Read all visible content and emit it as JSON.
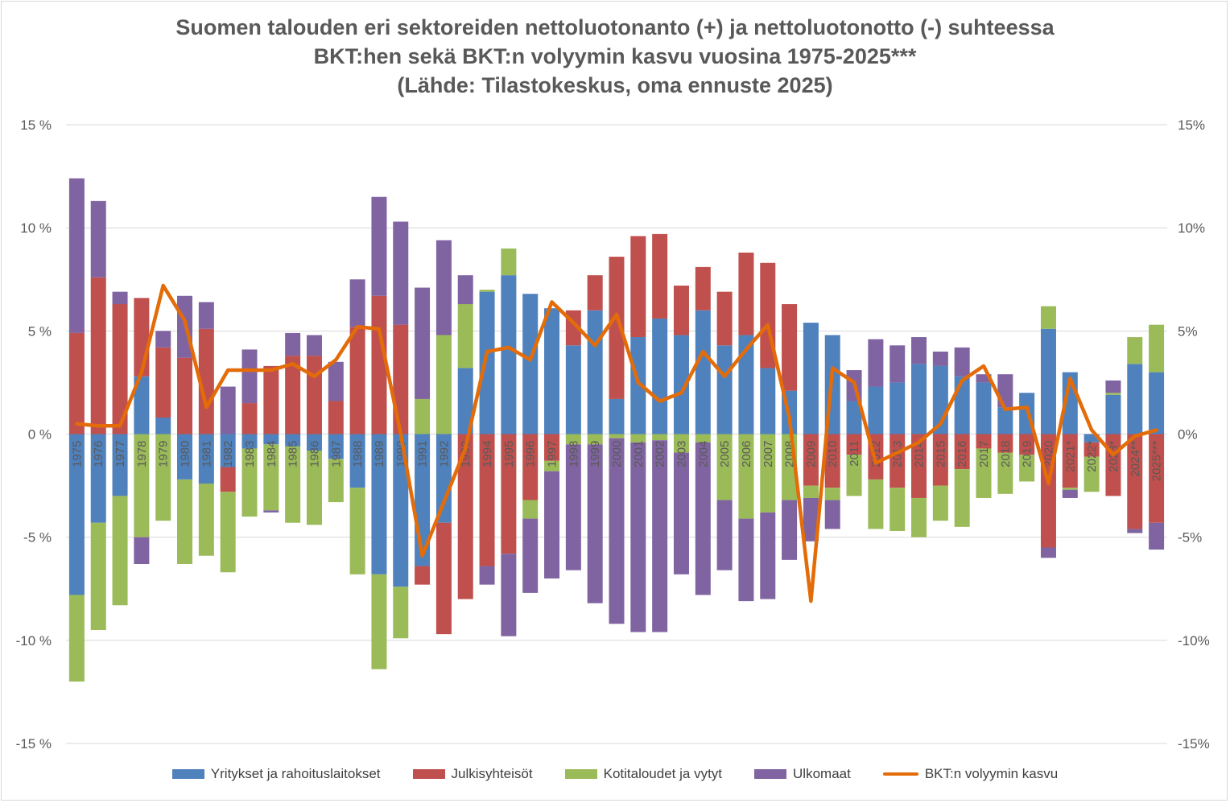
{
  "chart_data": {
    "type": "bar",
    "stacked": true,
    "title_lines": [
      "Suomen talouden eri sektoreiden nettoluotonanto (+) ja nettoluotonotto (-) suhteessa",
      "BKT:hen sekä BKT:n volyymin kasvu vuosina 1975-2025***",
      "(Lähde: Tilastokeskus, oma ennuste 2025)"
    ],
    "y_left_ticks": [
      "15 %",
      "10 %",
      "5 %",
      "0 %",
      "-5 %",
      "-10 %",
      "-15 %"
    ],
    "y_right_ticks": [
      "15%",
      "10%",
      "5%",
      "0%",
      "-5%",
      "-10%",
      "-15%"
    ],
    "ylim": [
      -15,
      15
    ],
    "categories": [
      "1975",
      "1976",
      "1977",
      "1978",
      "1979",
      "1980",
      "1981",
      "1982",
      "1983",
      "1984",
      "1985",
      "1986",
      "1987",
      "1988",
      "1989",
      "1990",
      "1991",
      "1992",
      "1993",
      "1994",
      "1995",
      "1996",
      "1997",
      "1998",
      "1999",
      "2000",
      "2001",
      "2002",
      "2003",
      "2004",
      "2005",
      "2006",
      "2007",
      "2008",
      "2009",
      "2010",
      "2011",
      "2012",
      "2013",
      "2014",
      "2015",
      "2016",
      "2017",
      "2018",
      "2019",
      "2020",
      "2021*",
      "2022*",
      "2023*",
      "2024**",
      "2025***"
    ],
    "series": [
      {
        "name": "Yritykset ja rahoituslaitokset",
        "color": "#4f81bd",
        "values": [
          -7.8,
          -4.3,
          -3.0,
          2.8,
          0.8,
          -2.2,
          -2.4,
          -1.6,
          -0.7,
          -0.5,
          -0.6,
          -0.8,
          -1.2,
          -2.6,
          -6.8,
          -7.4,
          -6.4,
          -4.3,
          3.2,
          6.9,
          7.7,
          6.8,
          6.1,
          4.3,
          6.0,
          1.7,
          4.7,
          5.6,
          4.8,
          6.0,
          4.3,
          4.8,
          3.2,
          2.1,
          5.4,
          4.8,
          1.6,
          2.3,
          2.5,
          3.4,
          3.3,
          2.8,
          2.5,
          1.3,
          2.0,
          5.1,
          3.0,
          -0.4,
          1.9,
          3.4,
          3.0
        ]
      },
      {
        "name": "Julkisyhteisöt",
        "color": "#c0504d",
        "values": [
          4.9,
          7.6,
          6.3,
          3.8,
          3.4,
          3.7,
          5.1,
          -1.2,
          1.5,
          3.3,
          3.8,
          3.8,
          1.6,
          5.2,
          6.7,
          5.3,
          -0.9,
          -5.4,
          -8.0,
          -6.4,
          -5.8,
          -3.2,
          -1.3,
          1.7,
          1.7,
          6.9,
          4.9,
          4.1,
          2.4,
          2.1,
          2.6,
          4.0,
          5.1,
          4.2,
          -2.5,
          -2.6,
          -1.0,
          -2.2,
          -2.6,
          -3.1,
          -2.5,
          -1.7,
          -0.7,
          -0.9,
          -1.0,
          -5.5,
          -2.6,
          -0.7,
          -3.0,
          -4.6,
          -4.3
        ]
      },
      {
        "name": "Kotitaloudet ja vytyt",
        "color": "#9bbb59",
        "values": [
          -4.2,
          -5.2,
          -5.3,
          -5.0,
          -4.2,
          -4.1,
          -3.5,
          -3.9,
          -3.3,
          -3.2,
          -3.7,
          -3.6,
          -2.1,
          -4.2,
          -4.6,
          -2.5,
          1.7,
          4.8,
          3.1,
          0.1,
          1.3,
          -0.9,
          -0.5,
          -0.5,
          -0.5,
          -0.2,
          -0.4,
          -0.3,
          -0.9,
          -0.4,
          -3.2,
          -4.1,
          -3.8,
          -3.2,
          -0.6,
          -0.6,
          -2.0,
          -2.4,
          -2.1,
          -1.9,
          -1.7,
          -2.8,
          -2.4,
          -2.0,
          -1.3,
          1.1,
          -0.1,
          -1.7,
          0.1,
          1.3,
          2.3
        ]
      },
      {
        "name": "Ulkomaat",
        "color": "#8064a2",
        "values": [
          7.5,
          3.7,
          0.6,
          -1.3,
          0.8,
          3.0,
          1.3,
          2.3,
          2.6,
          -0.1,
          1.1,
          1.0,
          1.9,
          2.3,
          4.8,
          5.0,
          5.4,
          4.6,
          1.4,
          -0.9,
          -4.0,
          -3.6,
          -5.2,
          -6.1,
          -7.7,
          -9.0,
          -9.2,
          -9.3,
          -5.9,
          -7.4,
          -3.4,
          -4.0,
          -4.2,
          -2.9,
          -2.1,
          -1.4,
          1.5,
          2.3,
          1.8,
          1.3,
          0.7,
          1.4,
          0.4,
          1.6,
          0.0,
          -0.5,
          -0.4,
          0.0,
          0.6,
          -0.2,
          -1.3
        ]
      }
    ],
    "line": {
      "name": "BKT:n volyymin kasvu",
      "color": "#e36c09",
      "values": [
        0.5,
        0.4,
        0.4,
        3.0,
        7.2,
        5.5,
        1.3,
        3.1,
        3.1,
        3.1,
        3.4,
        2.8,
        3.6,
        5.2,
        5.1,
        0.0,
        -5.9,
        -3.3,
        -0.7,
        4.0,
        4.2,
        3.6,
        6.4,
        5.4,
        4.3,
        5.8,
        2.5,
        1.6,
        2.0,
        4.0,
        2.8,
        4.1,
        5.3,
        0.8,
        -8.1,
        3.2,
        2.5,
        -1.4,
        -0.9,
        -0.4,
        0.5,
        2.6,
        3.3,
        1.2,
        1.3,
        -2.4,
        2.7,
        0.2,
        -1.0,
        -0.1,
        0.2
      ]
    }
  }
}
